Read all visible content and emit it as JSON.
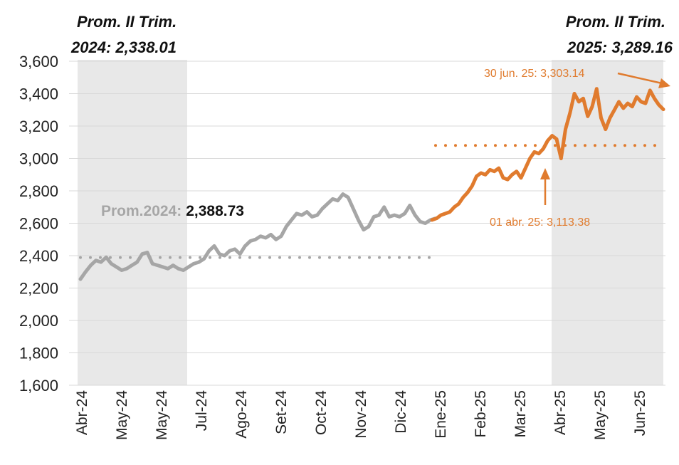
{
  "chart_data": {
    "type": "line",
    "title": "",
    "xlabel": "",
    "ylabel": "",
    "ylim": [
      1600,
      3600
    ],
    "y_ticks": [
      "1,600",
      "1,800",
      "2,000",
      "2,200",
      "2,400",
      "2,600",
      "2,800",
      "3,000",
      "3,200",
      "3,400",
      "3,600"
    ],
    "y_tick_values": [
      1600,
      1800,
      2000,
      2200,
      2400,
      2600,
      2800,
      3000,
      3200,
      3400,
      3600
    ],
    "x_ticks": [
      "Abr-24",
      "May-24",
      "May-24",
      "Jul-24",
      "Ago-24",
      "Set-24",
      "Oct-24",
      "Nov-24",
      "Dic-24",
      "Ene-25",
      "Feb-25",
      "Mar-25",
      "Abr-25",
      "May-25",
      "Jun-25"
    ],
    "series": [
      {
        "name": "2024",
        "color": "#A6A6A6",
        "values": [
          2255,
          2300,
          2340,
          2370,
          2360,
          2390,
          2350,
          2330,
          2310,
          2320,
          2340,
          2360,
          2410,
          2420,
          2350,
          2340,
          2330,
          2320,
          2340,
          2320,
          2310,
          2330,
          2350,
          2360,
          2380,
          2430,
          2460,
          2410,
          2400,
          2430,
          2440,
          2410,
          2460,
          2490,
          2500,
          2520,
          2510,
          2530,
          2500,
          2520,
          2580,
          2620,
          2660,
          2650,
          2670,
          2640,
          2650,
          2690,
          2720,
          2750,
          2740,
          2780,
          2760,
          2690,
          2620,
          2560,
          2580,
          2640,
          2650,
          2700,
          2640,
          2650,
          2640,
          2660,
          2710,
          2650,
          2610,
          2600,
          2620,
          2630
        ]
      },
      {
        "name": "2025",
        "color": "#E07B2E",
        "values": [
          2620,
          2630,
          2650,
          2660,
          2670,
          2700,
          2720,
          2760,
          2790,
          2830,
          2890,
          2910,
          2900,
          2930,
          2920,
          2940,
          2880,
          2870,
          2900,
          2920,
          2880,
          2940,
          3000,
          3040,
          3030,
          3060,
          3110,
          3140,
          3120,
          3000,
          3180,
          3280,
          3400,
          3350,
          3370,
          3260,
          3320,
          3430,
          3250,
          3180,
          3250,
          3300,
          3350,
          3310,
          3340,
          3320,
          3380,
          3350,
          3340,
          3420,
          3370,
          3330,
          3303
        ]
      }
    ],
    "annotations": {
      "prom_2024_q2_title": "Prom. II Trim.",
      "prom_2024_q2_value": "2024: 2,338.01",
      "prom_2025_q2_title": "Prom. II Trim.",
      "prom_2025_q2_value": "2025: 3,289.16",
      "prom_2024_prefix": "Prom.2024:",
      "prom_2024_value": "2,388.73",
      "prom_2024_level": 2388.73,
      "prom_2025_q2_level": 3080,
      "point_30jun": "30 jun. 25: 3,303.14",
      "point_01abr": "01 abr. 25: 3,113.38"
    },
    "colors": {
      "gray_series": "#A6A6A6",
      "orange_series": "#E07B2E",
      "shade": "#E8E8E8",
      "grid": "#D9D9D9"
    }
  }
}
